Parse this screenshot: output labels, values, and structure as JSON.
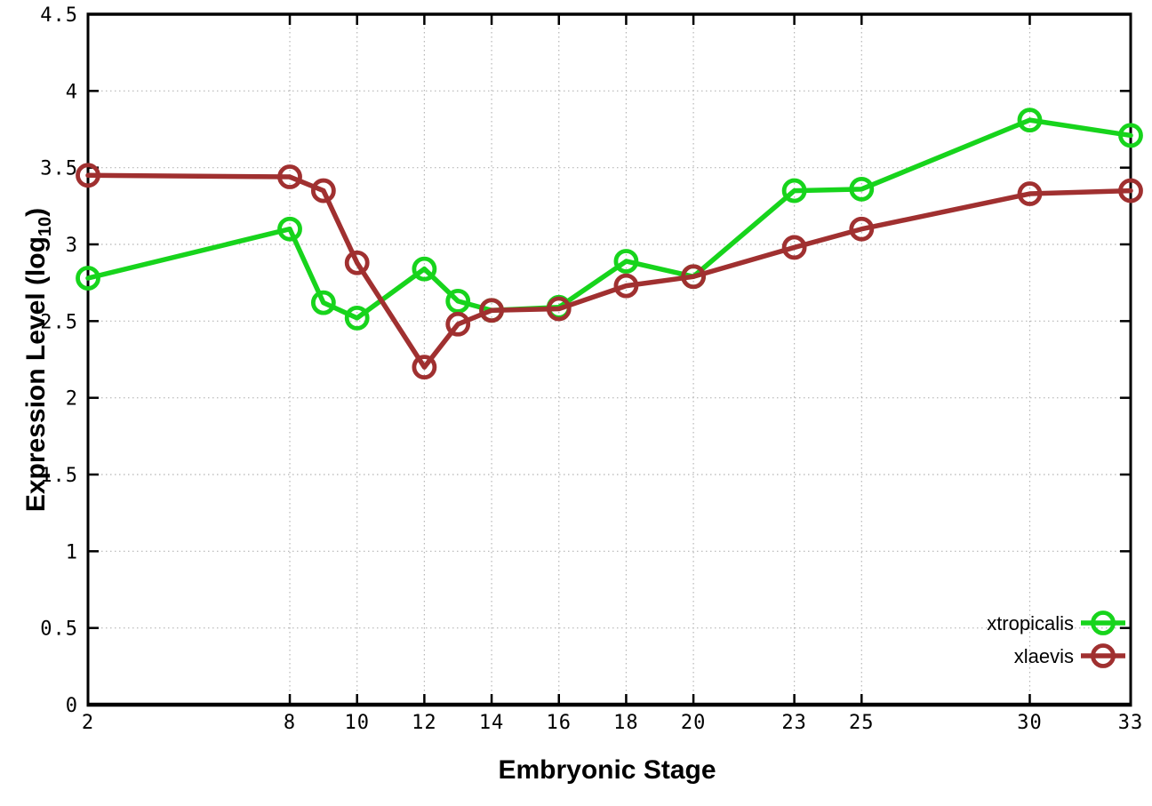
{
  "chart_data": {
    "type": "line",
    "title": "",
    "xlabel": "Embryonic Stage",
    "ylabel": "Expression Level (log10)",
    "ylabel_rich": {
      "pre": "Expression Level (log",
      "sub": "10",
      "post": ")"
    },
    "xlim": [
      2,
      33
    ],
    "ylim": [
      0,
      4.5
    ],
    "x_ticks": [
      2,
      8,
      10,
      12,
      14,
      16,
      18,
      20,
      23,
      25,
      30,
      33
    ],
    "y_ticks": [
      0,
      0.5,
      1,
      1.5,
      2,
      2.5,
      3,
      3.5,
      4,
      4.5
    ],
    "grid": "dotted-both-axes",
    "legend_position": "inside-bottom-right",
    "x": [
      2,
      8,
      9,
      10,
      12,
      13,
      14,
      16,
      18,
      20,
      23,
      25,
      30,
      33
    ],
    "series": [
      {
        "name": "xtropicalis",
        "color": "#17d41c",
        "marker": "open-circle",
        "values": [
          2.78,
          3.1,
          2.62,
          2.52,
          2.84,
          2.63,
          2.57,
          2.59,
          2.89,
          2.79,
          3.35,
          3.36,
          3.81,
          3.71
        ]
      },
      {
        "name": "xlaevis",
        "color": "#a03030",
        "marker": "open-circle",
        "values": [
          3.45,
          3.44,
          3.35,
          2.88,
          2.2,
          2.48,
          2.57,
          2.58,
          2.73,
          2.79,
          2.98,
          3.1,
          3.33,
          3.35
        ]
      }
    ],
    "colors": {
      "grid": "#b5b5b5",
      "axis": "#000000",
      "text": "#000000",
      "background": "#ffffff"
    }
  }
}
